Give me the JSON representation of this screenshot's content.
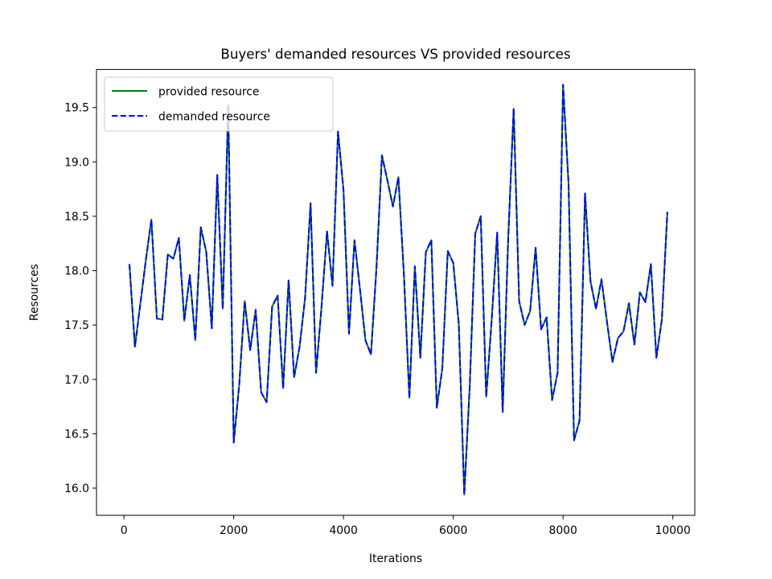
{
  "chart_data": {
    "type": "line",
    "title": "Buyers' demanded resources VS provided resources",
    "xlabel": "Iterations",
    "ylabel": "Resources",
    "xlim": [
      -500,
      10400
    ],
    "ylim": [
      15.75,
      19.85
    ],
    "xticks": [
      0,
      2000,
      4000,
      6000,
      8000,
      10000
    ],
    "xtick_labels": [
      "0",
      "2000",
      "4000",
      "6000",
      "8000",
      "10000"
    ],
    "yticks": [
      16.0,
      16.5,
      17.0,
      17.5,
      18.0,
      18.5,
      19.0,
      19.5
    ],
    "ytick_labels": [
      "16.0",
      "16.5",
      "17.0",
      "17.5",
      "18.0",
      "18.5",
      "19.0",
      "19.5"
    ],
    "grid": false,
    "legend_position": "upper left",
    "x": [
      100,
      200,
      300,
      400,
      500,
      600,
      700,
      800,
      900,
      1000,
      1100,
      1200,
      1300,
      1400,
      1500,
      1600,
      1700,
      1800,
      1900,
      2000,
      2100,
      2200,
      2300,
      2400,
      2500,
      2600,
      2700,
      2800,
      2900,
      3000,
      3100,
      3200,
      3300,
      3400,
      3500,
      3600,
      3700,
      3800,
      3900,
      4000,
      4100,
      4200,
      4300,
      4400,
      4500,
      4600,
      4700,
      4800,
      4900,
      5000,
      5100,
      5200,
      5300,
      5400,
      5500,
      5600,
      5700,
      5800,
      5900,
      6000,
      6100,
      6200,
      6300,
      6400,
      6500,
      6600,
      6700,
      6800,
      6900,
      7000,
      7100,
      7200,
      7300,
      7400,
      7500,
      7600,
      7700,
      7800,
      7900,
      8000,
      8100,
      8200,
      8300,
      8400,
      8500,
      8600,
      8700,
      8800,
      8900,
      9000,
      9100,
      9200,
      9300,
      9400,
      9500,
      9600,
      9700,
      9800,
      9900
    ],
    "series": [
      {
        "name": "provided resource",
        "color": "#008000",
        "dash": "solid",
        "values": [
          18.06,
          17.3,
          17.7,
          18.1,
          18.47,
          17.56,
          17.55,
          18.15,
          18.11,
          18.3,
          17.54,
          17.96,
          17.36,
          18.4,
          18.17,
          17.47,
          18.88,
          17.65,
          19.52,
          16.42,
          16.95,
          17.72,
          17.27,
          17.64,
          16.88,
          16.79,
          17.67,
          17.77,
          16.92,
          17.91,
          17.02,
          17.3,
          17.75,
          18.62,
          17.06,
          17.67,
          18.36,
          17.86,
          19.28,
          18.74,
          17.42,
          18.28,
          17.83,
          17.36,
          17.23,
          18.02,
          19.06,
          18.83,
          18.59,
          18.86,
          17.97,
          16.83,
          18.04,
          17.2,
          18.17,
          18.28,
          16.74,
          17.1,
          18.18,
          18.07,
          17.51,
          15.94,
          16.94,
          18.34,
          18.5,
          16.84,
          17.55,
          18.35,
          16.7,
          18.29,
          19.49,
          17.72,
          17.5,
          17.63,
          18.21,
          17.46,
          17.57,
          16.81,
          17.06,
          19.71,
          18.8,
          16.44,
          16.62,
          18.71,
          17.9,
          17.65,
          17.92,
          17.53,
          17.16,
          17.38,
          17.44,
          17.7,
          17.32,
          17.8,
          17.71,
          18.06,
          17.2,
          17.55,
          18.54
        ]
      },
      {
        "name": "demanded resource",
        "color": "#0000ff",
        "dash": "dashed",
        "values": [
          18.06,
          17.3,
          17.7,
          18.1,
          18.47,
          17.56,
          17.55,
          18.15,
          18.11,
          18.3,
          17.54,
          17.96,
          17.36,
          18.4,
          18.17,
          17.47,
          18.88,
          17.65,
          19.52,
          16.42,
          16.95,
          17.72,
          17.27,
          17.64,
          16.88,
          16.79,
          17.67,
          17.77,
          16.92,
          17.91,
          17.02,
          17.3,
          17.75,
          18.62,
          17.06,
          17.67,
          18.36,
          17.86,
          19.28,
          18.74,
          17.42,
          18.28,
          17.83,
          17.36,
          17.23,
          18.02,
          19.06,
          18.83,
          18.59,
          18.86,
          17.97,
          16.83,
          18.04,
          17.2,
          18.17,
          18.28,
          16.74,
          17.1,
          18.18,
          18.07,
          17.51,
          15.94,
          16.94,
          18.34,
          18.5,
          16.84,
          17.55,
          18.35,
          16.7,
          18.29,
          19.49,
          17.72,
          17.5,
          17.63,
          18.21,
          17.46,
          17.57,
          16.81,
          17.06,
          19.71,
          18.8,
          16.44,
          16.62,
          18.71,
          17.9,
          17.65,
          17.92,
          17.53,
          17.16,
          17.38,
          17.44,
          17.7,
          17.32,
          17.8,
          17.71,
          18.06,
          17.2,
          17.55,
          18.54
        ]
      }
    ]
  }
}
